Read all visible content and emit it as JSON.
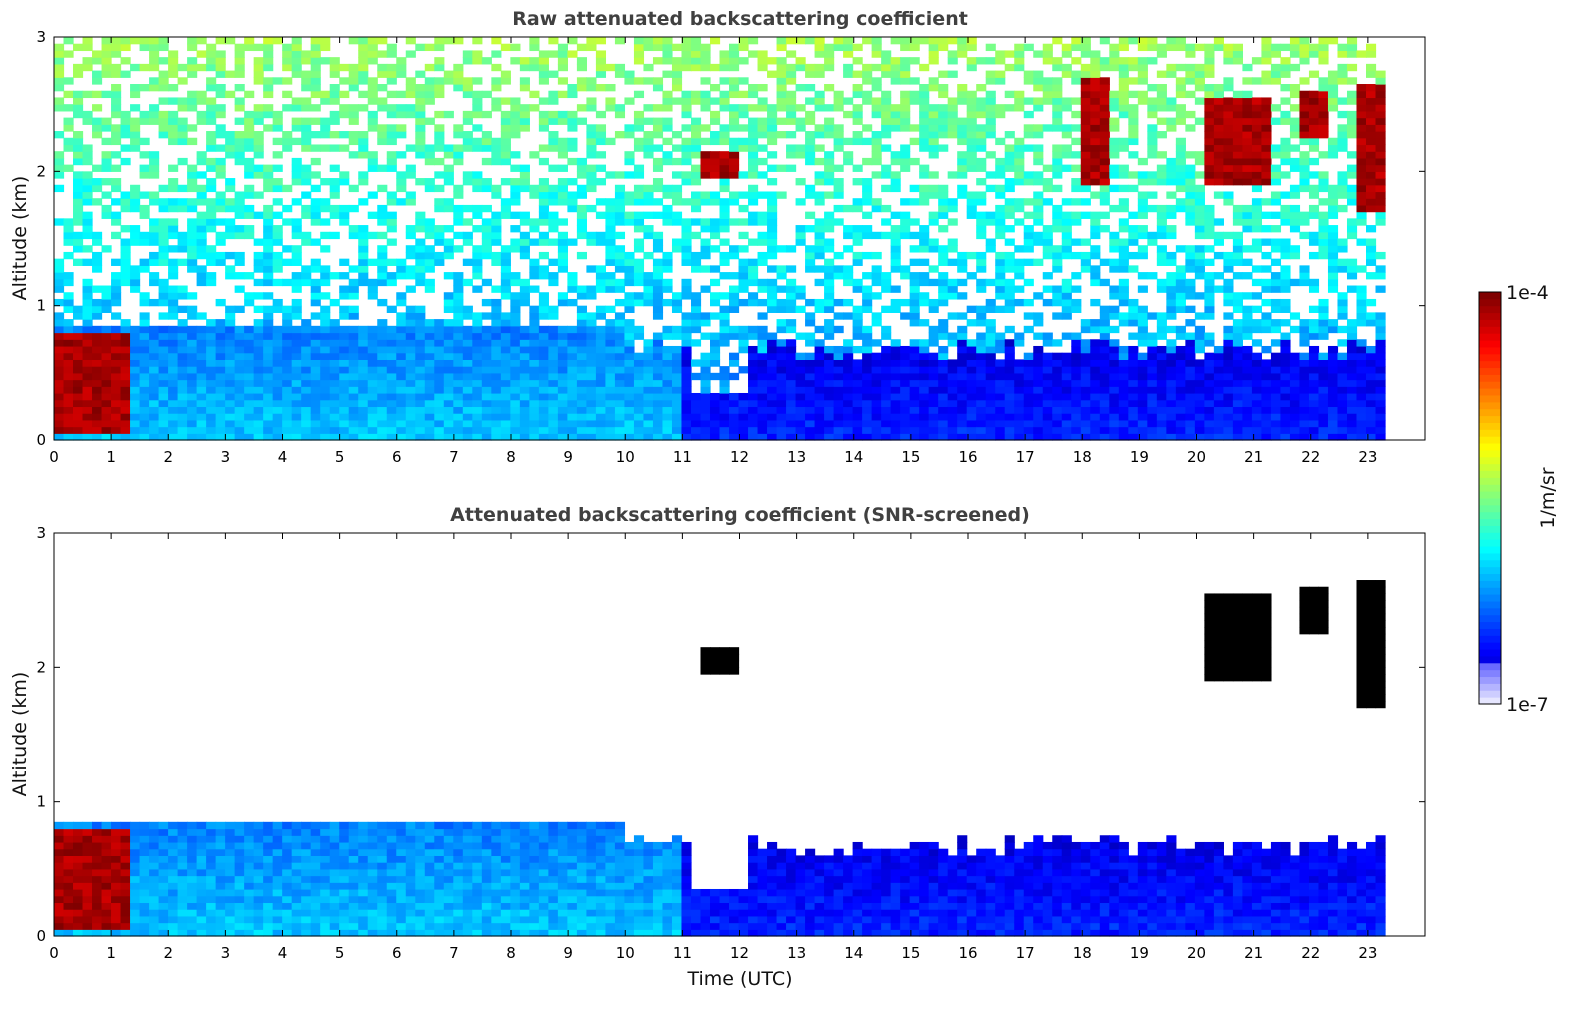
{
  "figure": {
    "xlabel": "Time (UTC)",
    "colorbar": {
      "label": "1/m/sr",
      "min_label": "1e-7",
      "max_label": "1e-4",
      "colormap": "jet"
    }
  },
  "chart_data": [
    {
      "type": "heatmap",
      "title": "Raw attenuated backscattering coefficient",
      "xlabel": "",
      "ylabel": "Altitude (km)",
      "xlim": [
        0,
        24
      ],
      "ylim": [
        0,
        3
      ],
      "xticks": [
        "0",
        "1",
        "2",
        "3",
        "4",
        "5",
        "6",
        "7",
        "8",
        "9",
        "10",
        "11",
        "12",
        "13",
        "14",
        "15",
        "16",
        "17",
        "18",
        "19",
        "20",
        "21",
        "22",
        "23"
      ],
      "yticks": [
        "0",
        "1",
        "2",
        "3"
      ],
      "data_end_hour": 23.3,
      "colorscale": "log10 1e-7 to 1e-4 1/m/sr",
      "features": [
        {
          "name": "low cloud / aerosol",
          "x": [
            0.0,
            1.4
          ],
          "y": [
            0.05,
            0.8
          ],
          "level": "high"
        },
        {
          "name": "boundary layer",
          "x": [
            1.5,
            10.0
          ],
          "y": [
            0.0,
            0.85
          ],
          "level": "medium"
        },
        {
          "name": "cloud",
          "x": [
            11.3,
            12.0
          ],
          "y": [
            1.95,
            2.15
          ],
          "level": "high"
        },
        {
          "name": "cloud",
          "x": [
            20.1,
            21.3
          ],
          "y": [
            1.9,
            2.55
          ],
          "level": "high"
        },
        {
          "name": "cloud",
          "x": [
            21.8,
            22.3
          ],
          "y": [
            2.25,
            2.6
          ],
          "level": "high"
        },
        {
          "name": "cloud",
          "x": [
            22.8,
            23.3
          ],
          "y": [
            1.7,
            2.65
          ],
          "level": "high"
        },
        {
          "name": "cloud",
          "x": [
            17.9,
            18.5
          ],
          "y": [
            1.9,
            2.7
          ],
          "level": "high"
        }
      ]
    },
    {
      "type": "heatmap",
      "title": "Attenuated backscattering coefficient (SNR-screened)",
      "xlabel": "Time (UTC)",
      "ylabel": "Altitude (km)",
      "xlim": [
        0,
        24
      ],
      "ylim": [
        0,
        3
      ],
      "xticks": [
        "0",
        "1",
        "2",
        "3",
        "4",
        "5",
        "6",
        "7",
        "8",
        "9",
        "10",
        "11",
        "12",
        "13",
        "14",
        "15",
        "16",
        "17",
        "18",
        "19",
        "20",
        "21",
        "22",
        "23"
      ],
      "yticks": [
        "0",
        "1",
        "2",
        "3"
      ],
      "data_end_hour": 23.3,
      "colorscale": "log10 1e-7 to 1e-4 1/m/sr",
      "features": [
        {
          "name": "low cloud / aerosol",
          "x": [
            0.0,
            1.4
          ],
          "y": [
            0.05,
            0.8
          ],
          "level": "high"
        },
        {
          "name": "boundary layer",
          "x": [
            1.5,
            10.0
          ],
          "y": [
            0.0,
            0.9
          ],
          "level": "medium"
        },
        {
          "name": "boundary layer",
          "x": [
            10.0,
            23.3
          ],
          "y": [
            0.0,
            0.7
          ],
          "level": "low"
        },
        {
          "name": "cloud",
          "x": [
            11.3,
            12.0
          ],
          "y": [
            1.95,
            2.15
          ],
          "level": "saturated"
        },
        {
          "name": "cloud",
          "x": [
            20.1,
            21.3
          ],
          "y": [
            1.9,
            2.55
          ],
          "level": "saturated"
        },
        {
          "name": "cloud",
          "x": [
            21.8,
            22.3
          ],
          "y": [
            2.25,
            2.6
          ],
          "level": "saturated"
        },
        {
          "name": "cloud",
          "x": [
            22.8,
            23.3
          ],
          "y": [
            1.7,
            2.65
          ],
          "level": "saturated"
        }
      ]
    }
  ]
}
